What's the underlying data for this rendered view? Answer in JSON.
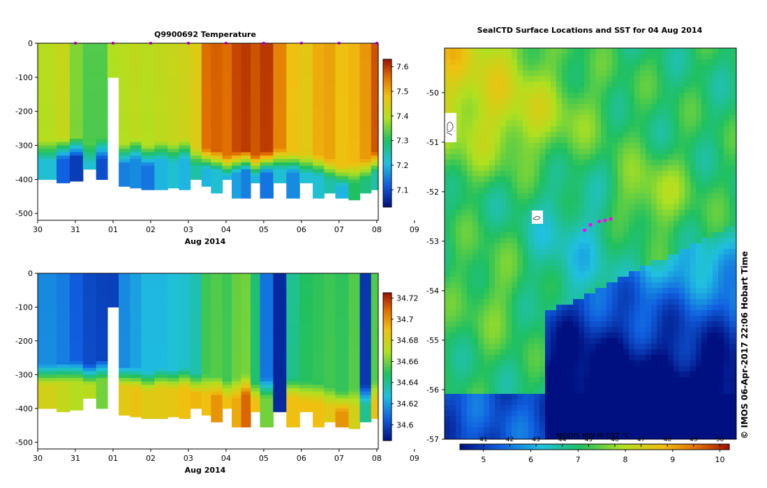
{
  "chart_data": [
    {
      "type": "heatmap",
      "title": "Q9900692  Temperature",
      "xlabel": "Aug 2014",
      "ylabel": "",
      "x_ticks": [
        "30",
        "31",
        "01",
        "02",
        "03",
        "04",
        "05",
        "06",
        "07",
        "08",
        "09"
      ],
      "y_ticks": [
        "0",
        "-100",
        "-200",
        "-300",
        "-400",
        "-500"
      ],
      "ylim": [
        -520,
        0
      ],
      "colorbar": {
        "ticks": [
          "7.6",
          "7.5",
          "7.4",
          "7.3",
          "7.2",
          "7.1"
        ],
        "values": [
          7.6,
          7.5,
          7.4,
          7.3,
          7.2,
          7.1
        ],
        "range": [
          7.03,
          7.63
        ]
      },
      "profiles": [
        {
          "day": 0.0,
          "bottom": -400,
          "surface": 7.4,
          "deep": 7.22,
          "mix": -305
        },
        {
          "day": 0.5,
          "bottom": -410,
          "surface": 7.42,
          "deep": 7.12,
          "mix": -300
        },
        {
          "day": 0.85,
          "bottom": -405,
          "surface": 7.36,
          "deep": 7.08,
          "mix": -295
        },
        {
          "day": 1.2,
          "bottom": -370,
          "surface": 7.33,
          "deep": 7.22,
          "mix": -315
        },
        {
          "day": 1.55,
          "bottom": -400,
          "surface": 7.33,
          "deep": 7.1,
          "mix": -300
        },
        {
          "day": 1.85,
          "bottom": -100,
          "surface": 7.39,
          "deep": 7.39,
          "mix": -300
        },
        {
          "day": 2.15,
          "bottom": -420,
          "surface": 7.4,
          "deep": 7.15,
          "mix": -315
        },
        {
          "day": 2.45,
          "bottom": -425,
          "surface": 7.41,
          "deep": 7.16,
          "mix": -300
        },
        {
          "day": 2.75,
          "bottom": -430,
          "surface": 7.4,
          "deep": 7.14,
          "mix": -320
        },
        {
          "day": 3.1,
          "bottom": -430,
          "surface": 7.41,
          "deep": 7.2,
          "mix": -305
        },
        {
          "day": 3.45,
          "bottom": -425,
          "surface": 7.42,
          "deep": 7.22,
          "mix": -310
        },
        {
          "day": 3.75,
          "bottom": -430,
          "surface": 7.43,
          "deep": 7.2,
          "mix": -300
        },
        {
          "day": 4.05,
          "bottom": -400,
          "surface": 7.45,
          "deep": 7.25,
          "mix": -325
        },
        {
          "day": 4.35,
          "bottom": -420,
          "surface": 7.56,
          "deep": 7.2,
          "mix": -330
        },
        {
          "day": 4.6,
          "bottom": -440,
          "surface": 7.57,
          "deep": 7.22,
          "mix": -335
        },
        {
          "day": 4.9,
          "bottom": -400,
          "surface": 7.56,
          "deep": 7.2,
          "mix": -350
        },
        {
          "day": 5.15,
          "bottom": -455,
          "surface": 7.59,
          "deep": 7.18,
          "mix": -340
        },
        {
          "day": 5.4,
          "bottom": -455,
          "surface": 7.6,
          "deep": 7.15,
          "mix": -335
        },
        {
          "day": 5.65,
          "bottom": -410,
          "surface": 7.58,
          "deep": 7.2,
          "mix": -350
        },
        {
          "day": 5.9,
          "bottom": -455,
          "surface": 7.6,
          "deep": 7.14,
          "mix": -340
        },
        {
          "day": 6.25,
          "bottom": -410,
          "surface": 7.54,
          "deep": 7.22,
          "mix": -330
        },
        {
          "day": 6.6,
          "bottom": -455,
          "surface": 7.48,
          "deep": 7.16,
          "mix": -340
        },
        {
          "day": 6.95,
          "bottom": -410,
          "surface": 7.46,
          "deep": 7.22,
          "mix": -345
        },
        {
          "day": 7.3,
          "bottom": -455,
          "surface": 7.5,
          "deep": 7.22,
          "mix": -350
        },
        {
          "day": 7.6,
          "bottom": -440,
          "surface": 7.51,
          "deep": 7.25,
          "mix": -360
        },
        {
          "day": 7.9,
          "bottom": -455,
          "surface": 7.48,
          "deep": 7.2,
          "mix": -380
        },
        {
          "day": 8.25,
          "bottom": -460,
          "surface": 7.49,
          "deep": 7.3,
          "mix": -370
        },
        {
          "day": 8.55,
          "bottom": -440,
          "surface": 7.52,
          "deep": 7.28,
          "mix": -360
        },
        {
          "day": 8.85,
          "bottom": -430,
          "surface": 7.58,
          "deep": 7.25,
          "mix": -340
        }
      ]
    },
    {
      "type": "heatmap",
      "title": "",
      "xlabel": "Aug 2014",
      "ylabel": "",
      "x_ticks": [
        "30",
        "31",
        "01",
        "02",
        "03",
        "04",
        "05",
        "06",
        "07",
        "08",
        "09"
      ],
      "y_ticks": [
        "0",
        "-100",
        "-200",
        "-300",
        "-400",
        "-500"
      ],
      "ylim": [
        -520,
        0
      ],
      "colorbar": {
        "ticks": [
          "34.72",
          "34.7",
          "34.68",
          "34.66",
          "34.64",
          "34.62",
          "34.6"
        ],
        "values": [
          34.72,
          34.7,
          34.68,
          34.66,
          34.64,
          34.62,
          34.6
        ],
        "range": [
          34.585,
          34.725
        ]
      },
      "profiles": [
        {
          "day": 0.0,
          "bottom": -400,
          "surface": 34.615,
          "deep": 34.68,
          "mix": -290
        },
        {
          "day": 0.5,
          "bottom": -410,
          "surface": 34.612,
          "deep": 34.675,
          "mix": -285
        },
        {
          "day": 0.85,
          "bottom": -405,
          "surface": 34.605,
          "deep": 34.67,
          "mix": -280
        },
        {
          "day": 1.2,
          "bottom": -370,
          "surface": 34.6,
          "deep": 34.672,
          "mix": -290
        },
        {
          "day": 1.55,
          "bottom": -400,
          "surface": 34.598,
          "deep": 34.66,
          "mix": -275
        },
        {
          "day": 1.85,
          "bottom": -100,
          "surface": 34.598,
          "deep": 34.598,
          "mix": -300
        },
        {
          "day": 2.15,
          "bottom": -420,
          "surface": 34.615,
          "deep": 34.685,
          "mix": -295
        },
        {
          "day": 2.45,
          "bottom": -425,
          "surface": 34.62,
          "deep": 34.688,
          "mix": -300
        },
        {
          "day": 2.75,
          "bottom": -430,
          "surface": 34.625,
          "deep": 34.684,
          "mix": -310
        },
        {
          "day": 3.1,
          "bottom": -430,
          "surface": 34.625,
          "deep": 34.685,
          "mix": -300
        },
        {
          "day": 3.45,
          "bottom": -425,
          "surface": 34.628,
          "deep": 34.686,
          "mix": -305
        },
        {
          "day": 3.75,
          "bottom": -430,
          "surface": 34.63,
          "deep": 34.69,
          "mix": -300
        },
        {
          "day": 4.05,
          "bottom": -400,
          "surface": 34.635,
          "deep": 34.692,
          "mix": -315
        },
        {
          "day": 4.35,
          "bottom": -420,
          "surface": 34.652,
          "deep": 34.69,
          "mix": -320
        },
        {
          "day": 4.6,
          "bottom": -440,
          "surface": 34.655,
          "deep": 34.7,
          "mix": -325
        },
        {
          "day": 4.9,
          "bottom": -400,
          "surface": 34.652,
          "deep": 34.69,
          "mix": -335
        },
        {
          "day": 5.15,
          "bottom": -455,
          "surface": 34.658,
          "deep": 34.695,
          "mix": -330
        },
        {
          "day": 5.4,
          "bottom": -455,
          "surface": 34.66,
          "deep": 34.71,
          "mix": -320
        },
        {
          "day": 5.65,
          "bottom": -410,
          "surface": 34.645,
          "deep": 34.69,
          "mix": -340
        },
        {
          "day": 5.9,
          "bottom": -455,
          "surface": 34.61,
          "deep": 34.66,
          "mix": -330
        },
        {
          "day": 6.25,
          "bottom": -410,
          "surface": 34.592,
          "deep": 34.592,
          "mix": -400
        },
        {
          "day": 6.6,
          "bottom": -455,
          "surface": 34.64,
          "deep": 34.69,
          "mix": -330
        },
        {
          "day": 6.95,
          "bottom": -410,
          "surface": 34.648,
          "deep": 34.69,
          "mix": -340
        },
        {
          "day": 7.3,
          "bottom": -455,
          "surface": 34.65,
          "deep": 34.69,
          "mix": -345
        },
        {
          "day": 7.6,
          "bottom": -440,
          "surface": 34.652,
          "deep": 34.685,
          "mix": -355
        },
        {
          "day": 7.9,
          "bottom": -455,
          "surface": 34.65,
          "deep": 34.7,
          "mix": -370
        },
        {
          "day": 8.25,
          "bottom": -460,
          "surface": 34.655,
          "deep": 34.68,
          "mix": -360
        },
        {
          "day": 8.55,
          "bottom": -440,
          "surface": 34.595,
          "deep": 34.64,
          "mix": -350
        },
        {
          "day": 8.85,
          "bottom": -430,
          "surface": 34.655,
          "deep": 34.688,
          "mix": -340
        }
      ]
    },
    {
      "type": "heatmap",
      "title": "SealCTD Surface Locations and SST for 04 Aug 2014",
      "xlabel": "",
      "ylabel": "",
      "y_ticks": [
        "-50",
        "-51",
        "-52",
        "-53",
        "-54",
        "-55",
        "-56",
        "-57"
      ],
      "ylim": [
        -57,
        -49.1
      ],
      "colorbar": {
        "label": "MODIS MW-IR SST °C",
        "ticks_celsius": [
          "5",
          "6",
          "7",
          "8",
          "9",
          "10"
        ],
        "ticks_fahrenheit": [
          "41",
          "42",
          "43",
          "44",
          "45",
          "46",
          "47",
          "48",
          "49",
          "50"
        ],
        "range": [
          4.5,
          10.2
        ]
      },
      "seal_surface_points": [
        {
          "lon_frac": 0.48,
          "lat": -52.78,
          "value": 0
        },
        {
          "lon_frac": 0.5,
          "lat": -52.67,
          "value": 0
        },
        {
          "lon_frac": 0.53,
          "lat": -52.6,
          "value": 0
        },
        {
          "lon_frac": 0.55,
          "lat": -52.58,
          "value": 0
        },
        {
          "lon_frac": 0.57,
          "lat": -52.55,
          "value": 0
        }
      ],
      "watermark": "© IMOS 06-Apr-2017 22:06 Hobart Time"
    }
  ],
  "colors": {
    "surface_marker": "#ff00ff"
  }
}
